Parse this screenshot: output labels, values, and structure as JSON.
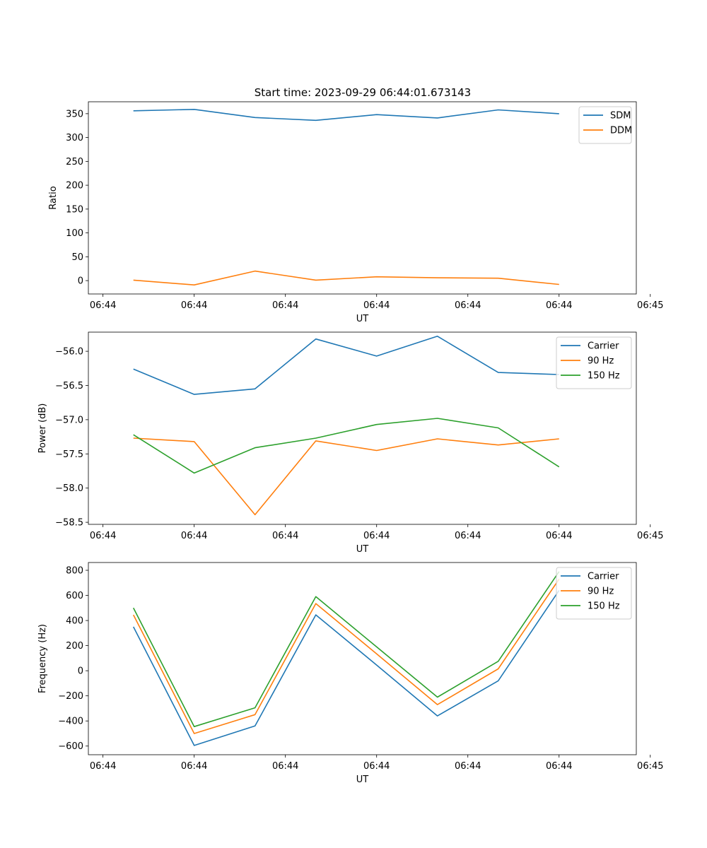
{
  "figure_title": "Start time: 2023-09-29 06:44:01.673143",
  "colors": {
    "blue": "#1f77b4",
    "orange": "#ff7f0e",
    "green": "#2ca02c"
  },
  "chart_data": [
    {
      "type": "line",
      "title": "Start time: 2023-09-29 06:44:01.673143",
      "xlabel": "UT",
      "ylabel": "Ratio",
      "x": [
        1,
        2,
        3,
        4,
        5,
        6,
        7,
        8
      ],
      "xlim": [
        0.26,
        9.27
      ],
      "x_ticks": [
        0.5,
        2.0,
        3.5,
        5.0,
        6.5,
        8.0,
        9.5
      ],
      "x_tick_labels": [
        "06:44",
        "06:44",
        "06:44",
        "06:44",
        "06:44",
        "06:44",
        "06:45"
      ],
      "ylim": [
        -28,
        375
      ],
      "y_ticks": [
        0,
        50,
        100,
        150,
        200,
        250,
        300,
        350
      ],
      "y_tick_labels": [
        "0",
        "50",
        "100",
        "150",
        "200",
        "250",
        "300",
        "350"
      ],
      "legend_position": "top-right",
      "series": [
        {
          "name": "SDM",
          "color": "#1f77b4",
          "values": [
            356,
            359,
            342,
            336,
            348,
            341,
            358,
            350
          ]
        },
        {
          "name": "DDM",
          "color": "#ff7f0e",
          "values": [
            1,
            -9,
            20,
            1,
            8,
            6,
            5,
            -8
          ]
        }
      ]
    },
    {
      "type": "line",
      "title": "",
      "xlabel": "UT",
      "ylabel": "Power (dB)",
      "x": [
        1,
        2,
        3,
        4,
        5,
        6,
        7,
        8
      ],
      "xlim": [
        0.26,
        9.27
      ],
      "x_ticks": [
        0.5,
        2.0,
        3.5,
        5.0,
        6.5,
        8.0,
        9.5
      ],
      "x_tick_labels": [
        "06:44",
        "06:44",
        "06:44",
        "06:44",
        "06:44",
        "06:44",
        "06:45"
      ],
      "ylim": [
        -58.53,
        -55.72
      ],
      "y_ticks": [
        -56.0,
        -56.5,
        -57.0,
        -57.5,
        -58.0,
        -58.5
      ],
      "y_tick_labels": [
        "−56.0",
        "−56.5",
        "−57.0",
        "−57.5",
        "−58.0",
        "−58.5"
      ],
      "legend_position": "top-right",
      "series": [
        {
          "name": "Carrier",
          "color": "#1f77b4",
          "values": [
            -56.26,
            -56.63,
            -56.55,
            -55.82,
            -56.07,
            -55.78,
            -56.31,
            -56.34
          ]
        },
        {
          "name": "90 Hz",
          "color": "#ff7f0e",
          "values": [
            -57.27,
            -57.32,
            -58.39,
            -57.31,
            -57.45,
            -57.28,
            -57.37,
            -57.28
          ]
        },
        {
          "name": "150 Hz",
          "color": "#2ca02c",
          "values": [
            -57.22,
            -57.78,
            -57.41,
            -57.27,
            -57.07,
            -56.98,
            -57.12,
            -57.69
          ]
        }
      ]
    },
    {
      "type": "line",
      "title": "",
      "xlabel": "UT",
      "ylabel": "Frequency (Hz)",
      "x": [
        1,
        2,
        3,
        4,
        5,
        6,
        7,
        8
      ],
      "xlim": [
        0.26,
        9.27
      ],
      "x_ticks": [
        0.5,
        2.0,
        3.5,
        5.0,
        6.5,
        8.0,
        9.5
      ],
      "x_tick_labels": [
        "06:44",
        "06:44",
        "06:44",
        "06:44",
        "06:44",
        "06:44",
        "06:45"
      ],
      "ylim": [
        -669,
        862
      ],
      "y_ticks": [
        -600,
        -400,
        -200,
        0,
        200,
        400,
        600,
        800
      ],
      "y_tick_labels": [
        "−600",
        "−400",
        "−200",
        "0",
        "200",
        "400",
        "600",
        "800"
      ],
      "legend_position": "top-right",
      "series": [
        {
          "name": "Carrier",
          "color": "#1f77b4",
          "values": [
            350,
            -595,
            -440,
            445,
            45,
            -360,
            -80,
            640
          ]
        },
        {
          "name": "90 Hz",
          "color": "#ff7f0e",
          "values": [
            445,
            -500,
            -350,
            535,
            135,
            -270,
            15,
            730
          ]
        },
        {
          "name": "150 Hz",
          "color": "#2ca02c",
          "values": [
            500,
            -445,
            -295,
            590,
            190,
            -210,
            75,
            790
          ]
        }
      ]
    }
  ]
}
